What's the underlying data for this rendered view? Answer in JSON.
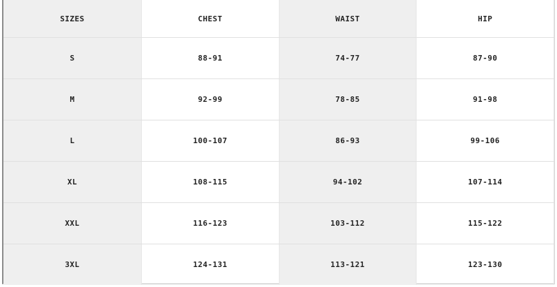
{
  "headers": [
    "SIZES",
    "CHEST",
    "WAIST",
    "HIP"
  ],
  "rows": [
    [
      "S",
      "88-91",
      "74-77",
      "87-90"
    ],
    [
      "M",
      "92-99",
      "78-85",
      "91-98"
    ],
    [
      "L",
      "100-107",
      "86-93",
      "99-106"
    ],
    [
      "XL",
      "108-115",
      "94-102",
      "107-114"
    ],
    [
      "XXL",
      "116-123",
      "103-112",
      "115-122"
    ],
    [
      "3XL",
      "124-131",
      "113-121",
      "123-130"
    ]
  ]
}
